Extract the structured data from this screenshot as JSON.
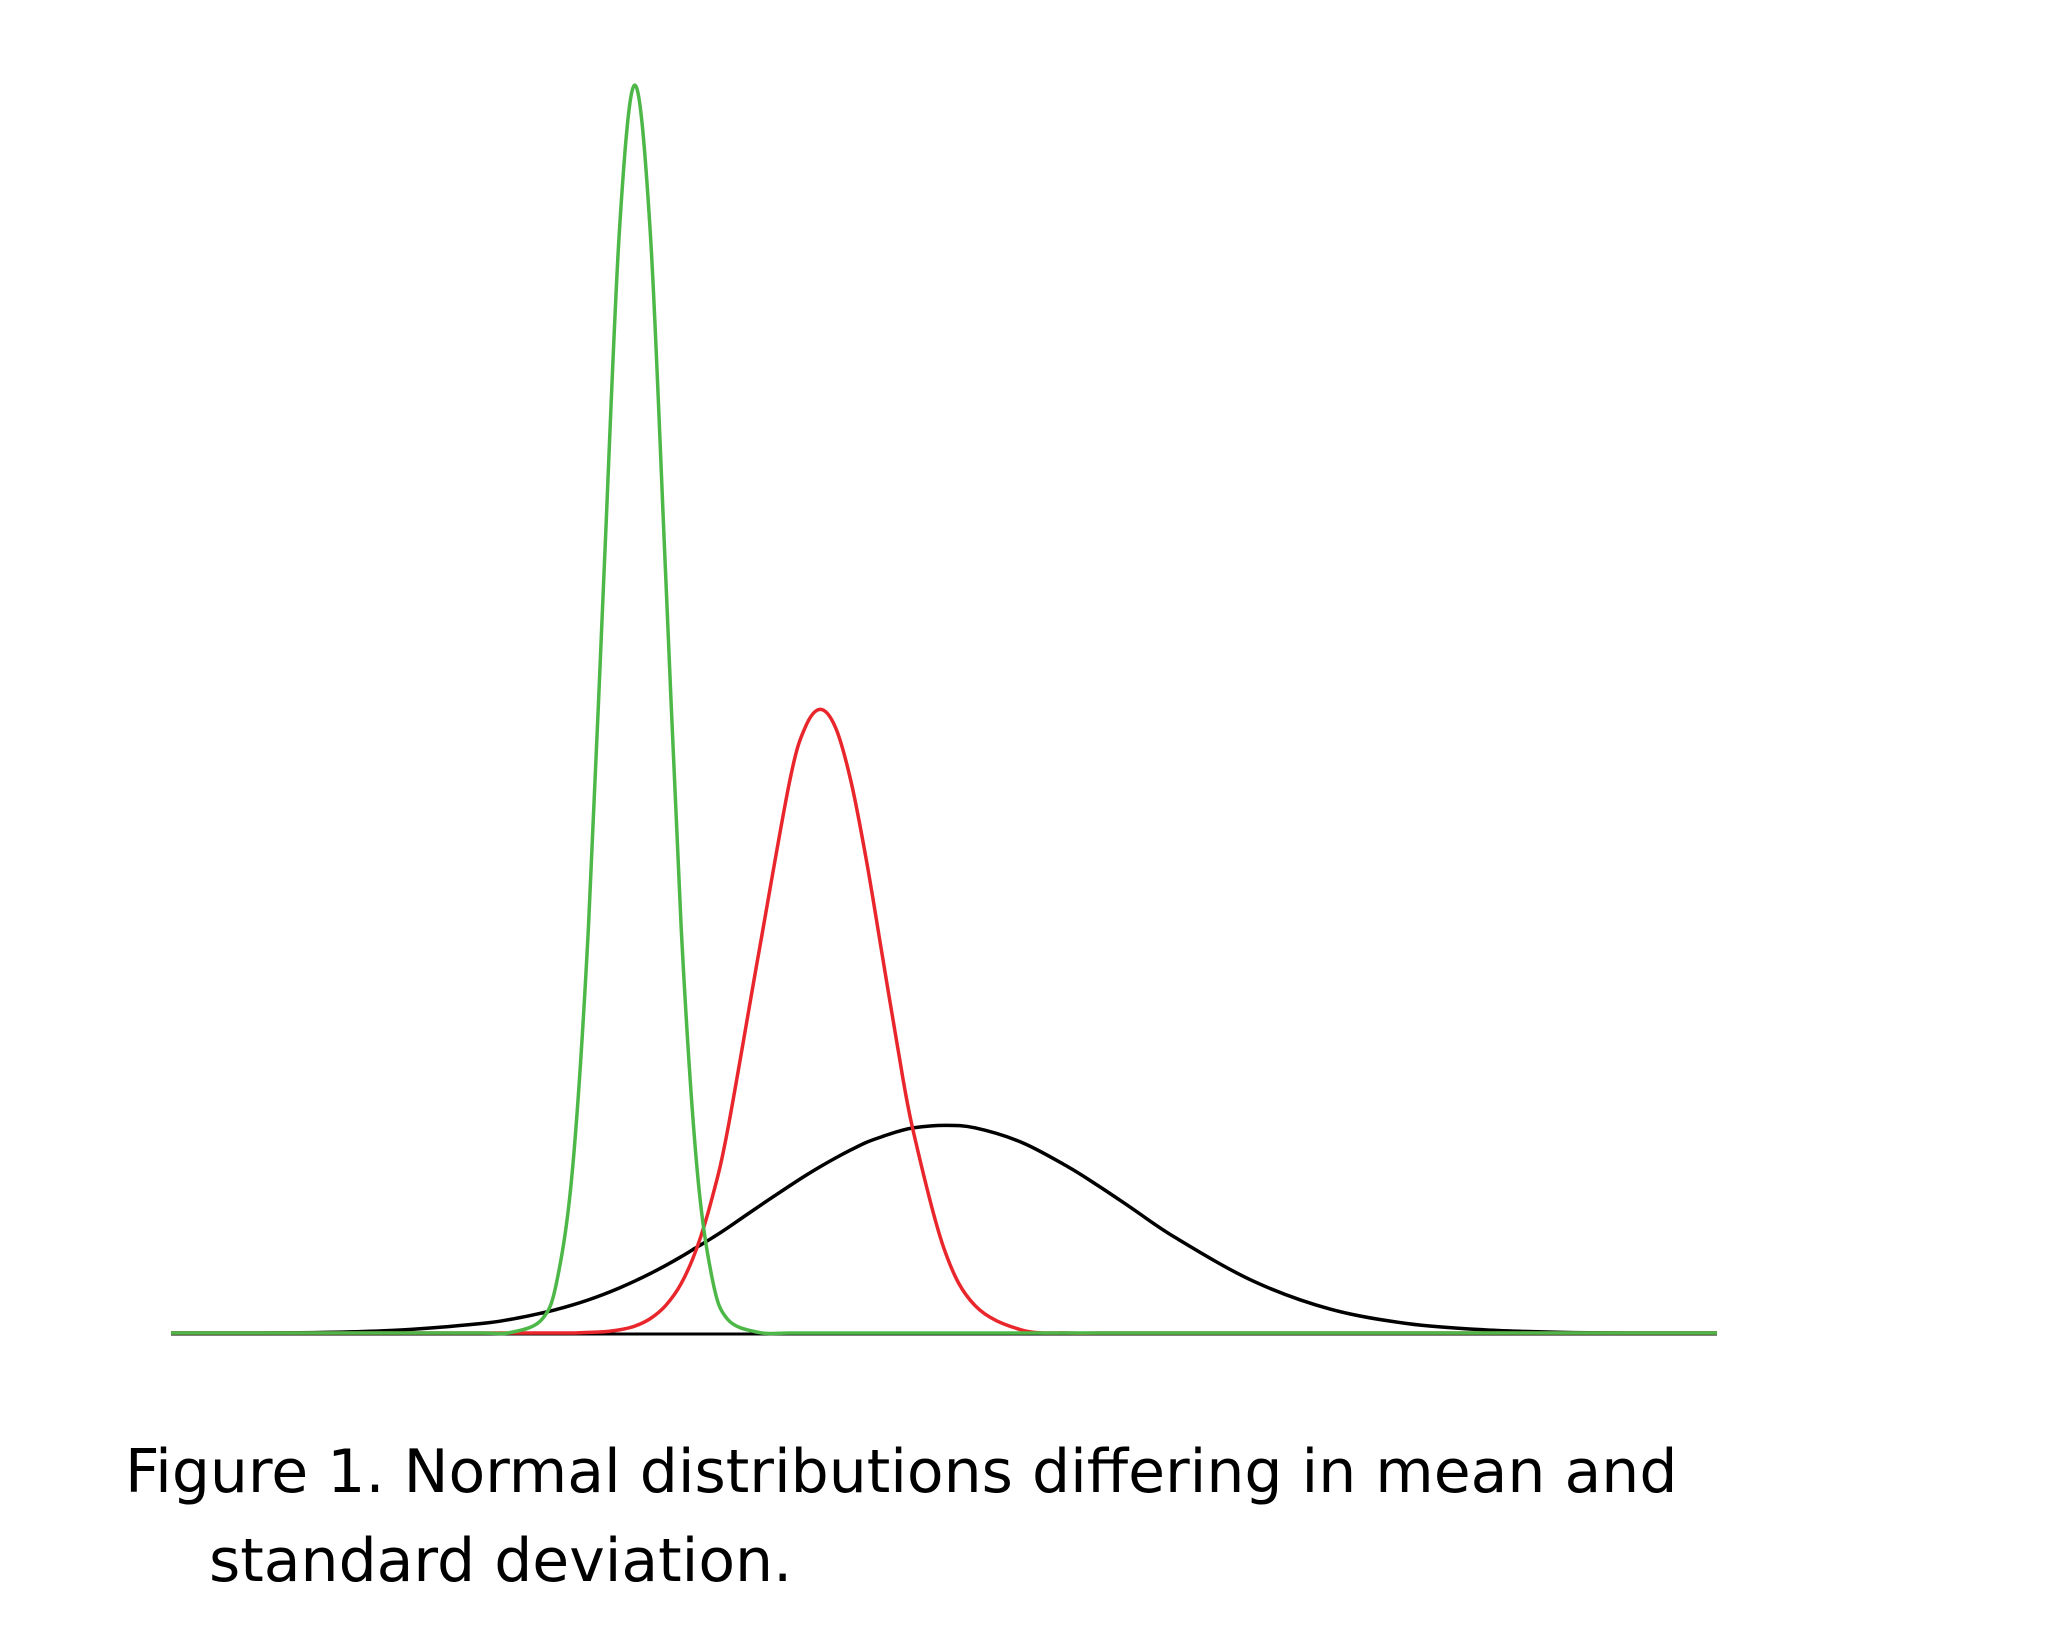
{
  "chart_data": {
    "type": "line",
    "caption": [
      "Figure 1. Normal distributions differing in mean and",
      "standard deviation."
    ],
    "x": [
      0,
      5,
      10,
      15,
      20,
      22,
      24,
      25,
      26,
      27,
      28,
      29,
      30,
      31,
      32,
      33,
      34,
      35,
      36,
      38,
      40,
      41,
      42,
      43,
      44,
      45,
      46,
      47,
      48,
      50,
      52,
      55,
      58,
      60,
      62,
      65,
      70,
      75,
      80,
      85,
      90,
      95,
      100
    ],
    "xlim": [
      0,
      100
    ],
    "ylim": [
      0,
      0.2
    ],
    "series": [
      {
        "color": "#000000",
        "values": [
          0,
          0,
          0.0001,
          0.0005,
          0.0015,
          0.0022,
          0.0032,
          0.0038,
          0.0045,
          0.0053,
          0.0062,
          0.0072,
          0.0083,
          0.0095,
          0.0108,
          0.0122,
          0.0137,
          0.0152,
          0.0168,
          0.0202,
          0.0235,
          0.0251,
          0.0266,
          0.028,
          0.0293,
          0.0305,
          0.0314,
          0.0322,
          0.0328,
          0.0332,
          0.0328,
          0.0305,
          0.0266,
          0.0235,
          0.0202,
          0.0152,
          0.0083,
          0.0038,
          0.0015,
          0.0005,
          0.0001,
          0,
          0
        ]
      },
      {
        "color": "#e8262b",
        "values": [
          0,
          0,
          0,
          0,
          0,
          0,
          0,
          0,
          0,
          0.0001,
          0.0002,
          0.0005,
          0.0011,
          0.0023,
          0.0044,
          0.0079,
          0.0135,
          0.0216,
          0.0324,
          0.0605,
          0.088,
          0.0967,
          0.0997,
          0.0967,
          0.088,
          0.0753,
          0.0605,
          0.0457,
          0.0324,
          0.0135,
          0.0044,
          0.0005,
          0,
          0,
          0,
          0,
          0,
          0,
          0,
          0,
          0,
          0,
          0
        ]
      },
      {
        "color": "#4db848",
        "values": [
          0,
          0,
          0,
          0,
          0,
          0.0001,
          0.0022,
          0.0088,
          0.027,
          0.0648,
          0.121,
          0.176,
          0.1995,
          0.176,
          0.121,
          0.0648,
          0.027,
          0.0088,
          0.0022,
          0.0001,
          0,
          0,
          0,
          0,
          0,
          0,
          0,
          0,
          0,
          0,
          0,
          0,
          0,
          0,
          0,
          0,
          0,
          0,
          0,
          0,
          0,
          0,
          0
        ]
      }
    ]
  }
}
